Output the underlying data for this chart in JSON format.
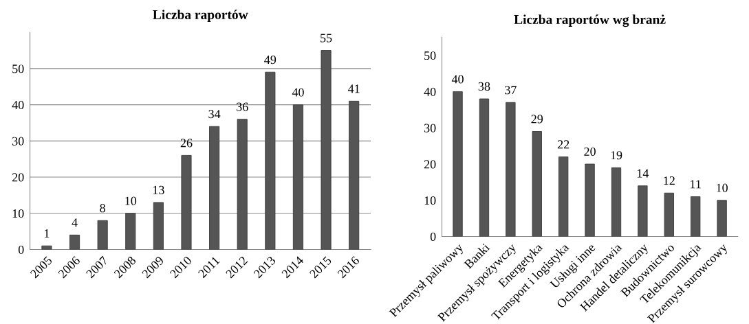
{
  "chart_data": [
    {
      "type": "bar",
      "title": "Liczba raportów",
      "categories": [
        "2005",
        "2006",
        "2007",
        "2008",
        "2009",
        "2010",
        "2011",
        "2012",
        "2013",
        "2014",
        "2015",
        "2016"
      ],
      "values": [
        1,
        4,
        8,
        10,
        13,
        26,
        34,
        36,
        49,
        40,
        55,
        41
      ],
      "color": "#555555",
      "ylim": [
        0,
        60
      ],
      "yticks": [
        0,
        10,
        20,
        30,
        40,
        50
      ],
      "grid": "y",
      "data_labels": true
    },
    {
      "type": "bar",
      "title": "Liczba raportów wg branż",
      "categories": [
        "Przemysł paliwowy",
        "Banki",
        "Przemysł spożywczy",
        "Energetyka",
        "Transport i logistyka",
        "Usługi inne",
        "Ochrona zdrowia",
        "Handel detaliczny",
        "Budownictwo",
        "Telekomunikcja",
        "Przemysł surowcowy"
      ],
      "values": [
        40,
        38,
        37,
        29,
        22,
        20,
        19,
        14,
        12,
        11,
        10
      ],
      "color": "#555555",
      "ylim": [
        0,
        55
      ],
      "yticks": [
        0,
        10,
        20,
        30,
        40,
        50
      ],
      "grid": false,
      "data_labels": true
    }
  ]
}
